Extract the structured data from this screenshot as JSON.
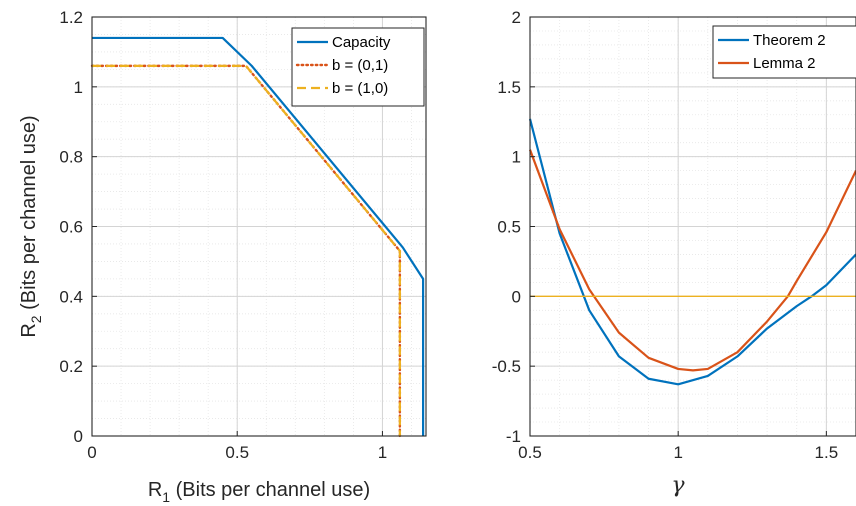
{
  "chart_data": [
    {
      "type": "line",
      "xlabel": "R_1 (Bits per channel use)",
      "xlabel_main": "R",
      "xlabel_sub": "1",
      "xlabel_rest": " (Bits per channel use)",
      "ylabel_main": "R",
      "ylabel_sub": "2",
      "ylabel_rest": " (Bits per channel use)",
      "xlim": [
        0,
        1.15
      ],
      "ylim": [
        0,
        1.2
      ],
      "xticks": [
        0,
        0.5,
        1
      ],
      "xtick_labels": [
        "0",
        "0.5",
        "1"
      ],
      "yticks": [
        0,
        0.2,
        0.4,
        0.6,
        0.8,
        1,
        1.2
      ],
      "ytick_labels": [
        "0",
        "0.2",
        "0.4",
        "0.6",
        "0.8",
        "1",
        "1.2"
      ],
      "grid": true,
      "legend_position": "top-right",
      "series": [
        {
          "name": "Capacity",
          "color": "#0072BD",
          "style": "solid",
          "x": [
            0,
            0.45,
            0.55,
            1.07,
            1.14,
            1.14
          ],
          "y": [
            1.14,
            1.14,
            1.06,
            0.54,
            0.45,
            0
          ]
        },
        {
          "name": "b = (0,1)",
          "color": "#D95319",
          "style": "dotted",
          "x": [
            0,
            0.53,
            1.06,
            1.06
          ],
          "y": [
            1.06,
            1.06,
            0.53,
            0
          ]
        },
        {
          "name": "b = (1,0)",
          "color": "#EDB120",
          "style": "dashed",
          "x": [
            0,
            0.53,
            1.06,
            1.06
          ],
          "y": [
            1.06,
            1.06,
            0.53,
            0
          ]
        }
      ]
    },
    {
      "type": "line",
      "xlabel": "γ",
      "xlim": [
        0.5,
        1.6
      ],
      "ylim": [
        -1,
        2
      ],
      "xticks": [
        0.5,
        1,
        1.5
      ],
      "xtick_labels": [
        "0.5",
        "1",
        "1.5"
      ],
      "yticks": [
        -1,
        -0.5,
        0,
        0.5,
        1,
        1.5,
        2
      ],
      "ytick_labels": [
        "-1",
        "-0.5",
        "0",
        "0.5",
        "1",
        "1.5",
        "2"
      ],
      "grid": true,
      "legend_position": "top-right",
      "series": [
        {
          "name": "Theorem 2",
          "color": "#0072BD",
          "x": [
            0.5,
            0.6,
            0.7,
            0.8,
            0.9,
            1.0,
            1.1,
            1.2,
            1.3,
            1.4,
            1.45,
            1.5,
            1.6
          ],
          "y": [
            1.27,
            0.45,
            -0.1,
            -0.43,
            -0.59,
            -0.63,
            -0.57,
            -0.43,
            -0.23,
            -0.07,
            0.0,
            0.08,
            0.3
          ]
        },
        {
          "name": "Lemma 2",
          "color": "#D95319",
          "x": [
            0.5,
            0.6,
            0.7,
            0.8,
            0.9,
            1.0,
            1.05,
            1.1,
            1.2,
            1.3,
            1.37,
            1.4,
            1.5,
            1.6
          ],
          "y": [
            1.05,
            0.48,
            0.05,
            -0.26,
            -0.44,
            -0.52,
            -0.53,
            -0.52,
            -0.4,
            -0.18,
            0.0,
            0.11,
            0.46,
            0.9
          ]
        },
        {
          "name": "",
          "color": "#EDB120",
          "x": [
            0.5,
            1.6
          ],
          "y": [
            0,
            0
          ]
        }
      ]
    }
  ]
}
